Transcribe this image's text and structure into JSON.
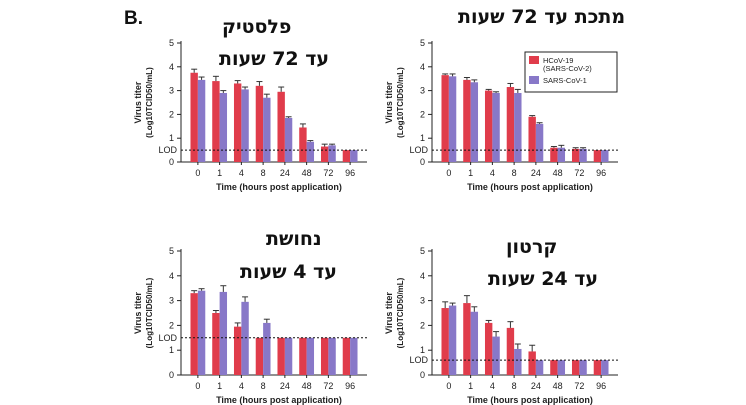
{
  "panel_label": "B.",
  "colors": {
    "sars_cov_2": "#e03c4b",
    "sars_cov_1": "#8878c8"
  },
  "chart_data": [
    {
      "type": "bar",
      "surface_title": [
        "פלסטיק",
        "עד 72 שעות"
      ],
      "categories": [
        "0",
        "1",
        "4",
        "8",
        "24",
        "48",
        "72",
        "96"
      ],
      "xlabel": "Time (hours post application)",
      "ylabel_line1": "Virus titer",
      "ylabel_line2": "(Log10TCID50/mL)",
      "lod_label": "LOD",
      "lod": 0.5,
      "ylim": [
        0,
        5
      ],
      "yticks": [
        "0",
        "1",
        "2",
        "3",
        "4",
        "5"
      ],
      "legend": null,
      "series": [
        {
          "values": [
            3.75,
            3.4,
            3.3,
            3.2,
            2.95,
            1.45,
            0.65,
            0.5
          ],
          "errors": [
            0.15,
            0.2,
            0.12,
            0.18,
            0.2,
            0.15,
            0.1,
            0.0
          ]
        },
        {
          "values": [
            3.45,
            2.9,
            3.05,
            2.7,
            1.85,
            0.85,
            0.7,
            0.5
          ],
          "errors": [
            0.12,
            0.1,
            0.1,
            0.15,
            0.05,
            0.05,
            0.05,
            0.0
          ]
        }
      ]
    },
    {
      "type": "bar",
      "surface_title": [
        "מתכת עד 72 שעות"
      ],
      "categories": [
        "0",
        "1",
        "4",
        "8",
        "24",
        "48",
        "72",
        "96"
      ],
      "xlabel": "Time (hours post application)",
      "ylabel_line1": "Virus titer",
      "ylabel_line2": "(Log10TCID50/mL)",
      "lod_label": "LOD",
      "lod": 0.5,
      "ylim": [
        0,
        5
      ],
      "yticks": [
        "0",
        "1",
        "2",
        "3",
        "4",
        "5"
      ],
      "legend": {
        "position": "top-right",
        "entries": [
          [
            "HCoV-19",
            "(SARS-CoV-2)"
          ],
          [
            "SARS-CoV-1"
          ]
        ]
      },
      "series": [
        {
          "values": [
            3.65,
            3.45,
            3.0,
            3.15,
            1.9,
            0.6,
            0.55,
            0.5
          ],
          "errors": [
            0.05,
            0.1,
            0.05,
            0.15,
            0.05,
            0.05,
            0.05,
            0.0
          ]
        },
        {
          "values": [
            3.6,
            3.35,
            2.9,
            2.9,
            1.6,
            0.6,
            0.55,
            0.5
          ],
          "errors": [
            0.1,
            0.1,
            0.05,
            0.15,
            0.05,
            0.1,
            0.05,
            0.0
          ]
        }
      ]
    },
    {
      "type": "bar",
      "surface_title": [
        "נחושת",
        "עד 4 שעות"
      ],
      "categories": [
        "0",
        "1",
        "4",
        "8",
        "24",
        "48",
        "72",
        "96"
      ],
      "xlabel": "Time (hours post application)",
      "ylabel_line1": "Virus titer",
      "ylabel_line2": "(Log10TCID50/mL)",
      "lod_label": "LOD",
      "lod": 1.5,
      "ylim": [
        0,
        5
      ],
      "yticks": [
        "0",
        "1",
        "2",
        "3",
        "4",
        "5"
      ],
      "legend": null,
      "series": [
        {
          "values": [
            3.3,
            2.5,
            1.95,
            1.5,
            1.5,
            1.5,
            1.5,
            1.5
          ],
          "errors": [
            0.1,
            0.1,
            0.15,
            0.0,
            0.0,
            0.0,
            0.0,
            0.0
          ]
        },
        {
          "values": [
            3.4,
            3.35,
            2.95,
            2.1,
            1.5,
            1.5,
            1.5,
            1.5
          ],
          "errors": [
            0.08,
            0.25,
            0.2,
            0.15,
            0.0,
            0.0,
            0.0,
            0.0
          ]
        }
      ]
    },
    {
      "type": "bar",
      "surface_title": [
        "קרטון",
        "עד 24 שעות"
      ],
      "categories": [
        "0",
        "1",
        "4",
        "8",
        "24",
        "48",
        "72",
        "96"
      ],
      "xlabel": "Time (hours post application)",
      "ylabel_line1": "Virus titer",
      "ylabel_line2": "(Log10TCID50/mL)",
      "lod_label": "LOD",
      "lod": 0.6,
      "ylim": [
        0,
        5
      ],
      "yticks": [
        "0",
        "1",
        "2",
        "3",
        "4",
        "5"
      ],
      "legend": null,
      "series": [
        {
          "values": [
            2.7,
            2.9,
            2.1,
            1.9,
            0.95,
            0.6,
            0.6,
            0.6
          ],
          "errors": [
            0.25,
            0.3,
            0.1,
            0.25,
            0.25,
            0.0,
            0.0,
            0.0
          ]
        },
        {
          "values": [
            2.8,
            2.55,
            1.55,
            1.05,
            0.6,
            0.6,
            0.6,
            0.6
          ],
          "errors": [
            0.1,
            0.2,
            0.2,
            0.2,
            0.0,
            0.0,
            0.0,
            0.0
          ]
        }
      ]
    }
  ]
}
